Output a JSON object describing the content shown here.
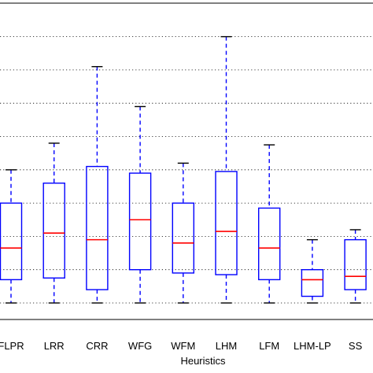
{
  "chart_data": {
    "type": "boxplot",
    "title": "",
    "xlabel": "Heuristics",
    "ylabel": "",
    "categories": [
      "FLPR",
      "LRR",
      "CRR",
      "WFG",
      "WFM",
      "LHM",
      "LFM",
      "LHM-LP",
      "SS"
    ],
    "ylim": [
      -0.5,
      8.5
    ],
    "yticks": [
      0,
      1,
      2,
      3,
      4,
      5,
      6,
      7,
      8
    ],
    "grid": "horizontal-dotted",
    "boxes": [
      {
        "name": "FLPR",
        "whisker_low": 0,
        "q1": 0.7,
        "median": 1.65,
        "q3": 3.0,
        "whisker_high": 4.0
      },
      {
        "name": "LRR",
        "whisker_low": 0,
        "q1": 0.75,
        "median": 2.1,
        "q3": 3.6,
        "whisker_high": 4.8
      },
      {
        "name": "CRR",
        "whisker_low": 0,
        "q1": 0.4,
        "median": 1.9,
        "q3": 4.1,
        "whisker_high": 7.1
      },
      {
        "name": "WFG",
        "whisker_low": 0,
        "q1": 1.0,
        "median": 2.5,
        "q3": 3.9,
        "whisker_high": 5.9
      },
      {
        "name": "WFM",
        "whisker_low": 0,
        "q1": 0.9,
        "median": 1.8,
        "q3": 3.0,
        "whisker_high": 4.2
      },
      {
        "name": "LHM",
        "whisker_low": 0,
        "q1": 0.85,
        "median": 2.15,
        "q3": 3.95,
        "whisker_high": 8.0
      },
      {
        "name": "LFM",
        "whisker_low": 0,
        "q1": 0.7,
        "median": 1.65,
        "q3": 2.85,
        "whisker_high": 4.75
      },
      {
        "name": "LHM-LP",
        "whisker_low": 0,
        "q1": 0.2,
        "median": 0.7,
        "q3": 1.0,
        "whisker_high": 1.9
      },
      {
        "name": "SS",
        "whisker_low": 0,
        "q1": 0.4,
        "median": 0.8,
        "q3": 1.9,
        "whisker_high": 2.2
      }
    ],
    "colors": {
      "box": "#0000ff",
      "median": "#ff0000",
      "whisker_cap": "#000000",
      "grid": "#000000",
      "axes": "#000000"
    }
  }
}
